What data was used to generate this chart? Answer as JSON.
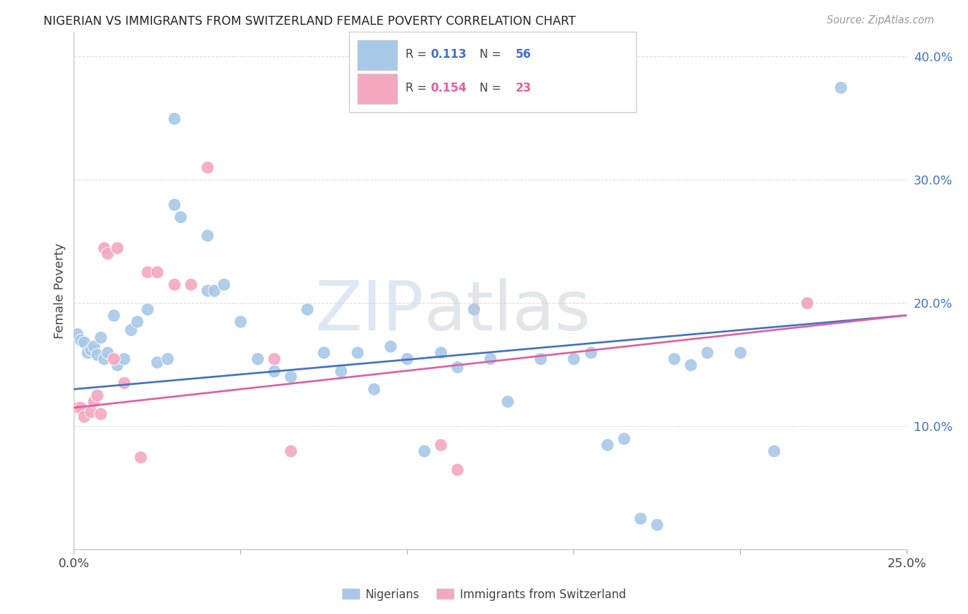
{
  "title": "NIGERIAN VS IMMIGRANTS FROM SWITZERLAND FEMALE POVERTY CORRELATION CHART",
  "source": "Source: ZipAtlas.com",
  "ylabel_label": "Female Poverty",
  "xlim": [
    0.0,
    0.25
  ],
  "ylim": [
    0.0,
    0.42
  ],
  "xtick_vals": [
    0.0,
    0.05,
    0.1,
    0.15,
    0.2,
    0.25
  ],
  "xtick_labels": [
    "0.0%",
    "",
    "",
    "",
    "",
    "25.0%"
  ],
  "ytick_vals": [
    0.0,
    0.1,
    0.2,
    0.3,
    0.4
  ],
  "ytick_labels": [
    "",
    "10.0%",
    "20.0%",
    "30.0%",
    "40.0%"
  ],
  "nigerian_R": 0.113,
  "nigerian_N": 56,
  "swiss_R": 0.154,
  "swiss_N": 23,
  "blue_color": "#A8C8E8",
  "pink_color": "#F4A8C0",
  "blue_line_color": "#4472C4",
  "pink_line_color": "#E060A0",
  "blue_label_color": "#4472C4",
  "pink_label_color": "#E060A0",
  "ytick_color": "#4472C4",
  "nigerian_x": [
    0.001,
    0.002,
    0.003,
    0.004,
    0.005,
    0.006,
    0.007,
    0.008,
    0.009,
    0.01,
    0.011,
    0.012,
    0.013,
    0.014,
    0.015,
    0.018,
    0.02,
    0.022,
    0.025,
    0.028,
    0.03,
    0.032,
    0.035,
    0.038,
    0.04,
    0.042,
    0.045,
    0.048,
    0.05,
    0.055,
    0.058,
    0.06,
    0.065,
    0.07,
    0.075,
    0.08,
    0.085,
    0.09,
    0.095,
    0.1,
    0.105,
    0.11,
    0.115,
    0.12,
    0.13,
    0.14,
    0.15,
    0.16,
    0.165,
    0.17,
    0.18,
    0.19,
    0.2,
    0.21,
    0.22,
    0.23
  ],
  "nigerian_y": [
    0.175,
    0.17,
    0.165,
    0.16,
    0.168,
    0.172,
    0.163,
    0.17,
    0.158,
    0.162,
    0.19,
    0.185,
    0.15,
    0.152,
    0.156,
    0.178,
    0.185,
    0.195,
    0.2,
    0.155,
    0.35,
    0.27,
    0.28,
    0.215,
    0.255,
    0.21,
    0.21,
    0.185,
    0.17,
    0.155,
    0.15,
    0.145,
    0.14,
    0.195,
    0.155,
    0.145,
    0.16,
    0.13,
    0.165,
    0.155,
    0.08,
    0.16,
    0.15,
    0.195,
    0.155,
    0.12,
    0.155,
    0.085,
    0.16,
    0.09,
    0.025,
    0.02,
    0.16,
    0.08,
    0.2,
    0.375
  ],
  "swiss_x": [
    0.001,
    0.002,
    0.003,
    0.004,
    0.005,
    0.006,
    0.007,
    0.008,
    0.009,
    0.012,
    0.013,
    0.015,
    0.018,
    0.02,
    0.022,
    0.025,
    0.03,
    0.035,
    0.04,
    0.055,
    0.06,
    0.11,
    0.22
  ],
  "swiss_y": [
    0.115,
    0.12,
    0.112,
    0.125,
    0.108,
    0.118,
    0.115,
    0.11,
    0.245,
    0.24,
    0.155,
    0.245,
    0.135,
    0.075,
    0.225,
    0.225,
    0.215,
    0.215,
    0.31,
    0.08,
    0.15,
    0.085,
    0.2
  ]
}
